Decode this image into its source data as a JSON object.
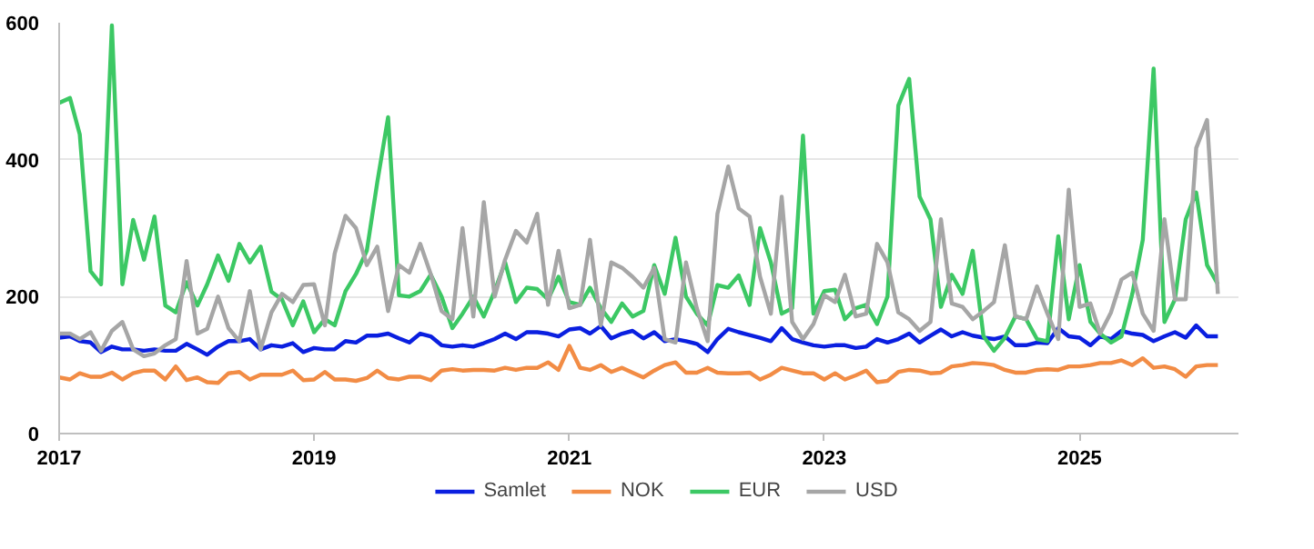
{
  "chart_data": {
    "type": "line",
    "x": [
      "2017-01",
      "2017-02",
      "2017-03",
      "2017-04",
      "2017-05",
      "2017-06",
      "2017-07",
      "2017-08",
      "2017-09",
      "2017-10",
      "2017-11",
      "2017-12",
      "2018-01",
      "2018-02",
      "2018-03",
      "2018-04",
      "2018-05",
      "2018-06",
      "2018-07",
      "2018-08",
      "2018-09",
      "2018-10",
      "2018-11",
      "2018-12",
      "2019-01",
      "2019-02",
      "2019-03",
      "2019-04",
      "2019-05",
      "2019-06",
      "2019-07",
      "2019-08",
      "2019-09",
      "2019-10",
      "2019-11",
      "2019-12",
      "2020-01",
      "2020-02",
      "2020-03",
      "2020-04",
      "2020-05",
      "2020-06",
      "2020-07",
      "2020-08",
      "2020-09",
      "2020-10",
      "2020-11",
      "2020-12",
      "2021-01",
      "2021-02",
      "2021-03",
      "2021-04",
      "2021-05",
      "2021-06",
      "2021-07",
      "2021-08",
      "2021-09",
      "2021-10",
      "2021-11",
      "2021-12",
      "2022-01",
      "2022-02",
      "2022-03",
      "2022-04",
      "2022-05",
      "2022-06",
      "2022-07",
      "2022-08",
      "2022-09",
      "2022-10",
      "2022-11",
      "2022-12",
      "2023-01",
      "2023-02",
      "2023-03",
      "2023-04",
      "2023-05",
      "2023-06",
      "2023-07",
      "2023-08",
      "2023-09",
      "2023-10",
      "2023-11",
      "2023-12",
      "2024-01",
      "2024-02",
      "2024-03",
      "2024-04",
      "2024-05",
      "2024-06",
      "2024-07",
      "2024-08",
      "2024-09",
      "2024-10",
      "2024-11",
      "2024-12",
      "2025-01",
      "2025-02",
      "2025-03",
      "2025-04",
      "2025-05",
      "2025-06",
      "2025-07",
      "2025-08",
      "2025-09",
      "2025-10",
      "2025-11",
      "2025-12",
      "2026-01",
      "2026-02"
    ],
    "xlim": [
      "2017-01",
      "2026-04"
    ],
    "xticks": [
      "2017",
      "2019",
      "2021",
      "2023",
      "2025"
    ],
    "ylim": [
      0,
      600
    ],
    "yticks": [
      0,
      200,
      400,
      600
    ],
    "grid": "y",
    "legend": "bottom",
    "marker": "none",
    "line_style": "solid",
    "series": [
      {
        "name": "Samlet",
        "color": "#0a1fe0",
        "values": [
          140,
          142,
          135,
          133,
          119,
          127,
          123,
          123,
          121,
          123,
          121,
          121,
          131,
          123,
          115,
          127,
          135,
          135,
          138,
          123,
          129,
          127,
          132,
          119,
          125,
          123,
          123,
          135,
          133,
          143,
          143,
          146,
          139,
          133,
          146,
          142,
          129,
          127,
          129,
          127,
          132,
          138,
          146,
          138,
          148,
          148,
          146,
          142,
          152,
          154,
          146,
          157,
          139,
          146,
          150,
          139,
          148,
          135,
          138,
          135,
          131,
          119,
          138,
          153,
          148,
          144,
          140,
          135,
          154,
          138,
          133,
          129,
          127,
          129,
          129,
          125,
          127,
          138,
          133,
          138,
          146,
          133,
          143,
          152,
          142,
          148,
          143,
          140,
          138,
          142,
          129,
          129,
          133,
          132,
          154,
          142,
          140,
          129,
          142,
          138,
          150,
          146,
          144,
          135,
          142,
          148,
          140,
          158,
          142,
          142
        ]
      },
      {
        "name": "NOK",
        "color": "#f28c45",
        "values": [
          82,
          79,
          88,
          83,
          83,
          89,
          79,
          88,
          92,
          92,
          79,
          98,
          78,
          82,
          75,
          74,
          88,
          90,
          79,
          86,
          86,
          86,
          92,
          78,
          79,
          90,
          79,
          79,
          77,
          81,
          92,
          81,
          79,
          83,
          83,
          78,
          92,
          94,
          92,
          93,
          93,
          92,
          96,
          93,
          96,
          96,
          104,
          93,
          128,
          96,
          93,
          100,
          90,
          96,
          89,
          82,
          92,
          100,
          104,
          89,
          89,
          96,
          89,
          88,
          88,
          89,
          79,
          86,
          96,
          92,
          88,
          88,
          79,
          88,
          79,
          85,
          92,
          75,
          77,
          90,
          93,
          92,
          88,
          89,
          98,
          100,
          103,
          102,
          100,
          93,
          89,
          89,
          93,
          94,
          93,
          98,
          98,
          100,
          103,
          103,
          107,
          100,
          110,
          96,
          98,
          94,
          83,
          98,
          100,
          100
        ]
      },
      {
        "name": "EUR",
        "color": "#3cc864",
        "values": [
          483,
          490,
          437,
          237,
          218,
          596,
          218,
          312,
          254,
          317,
          187,
          177,
          221,
          187,
          218,
          260,
          223,
          277,
          250,
          273,
          207,
          196,
          158,
          193,
          148,
          167,
          158,
          208,
          233,
          267,
          367,
          462,
          202,
          200,
          208,
          232,
          200,
          154,
          175,
          200,
          171,
          208,
          250,
          192,
          213,
          211,
          196,
          229,
          192,
          188,
          213,
          183,
          163,
          190,
          171,
          179,
          246,
          204,
          286,
          200,
          175,
          158,
          217,
          213,
          231,
          188,
          300,
          250,
          175,
          183,
          435,
          175,
          208,
          210,
          167,
          183,
          188,
          160,
          200,
          479,
          518,
          346,
          313,
          185,
          232,
          204,
          267,
          142,
          121,
          140,
          171,
          167,
          138,
          135,
          288,
          167,
          246,
          163,
          146,
          133,
          142,
          204,
          283,
          533,
          163,
          196,
          313,
          352,
          246,
          218
        ]
      },
      {
        "name": "USD",
        "color": "#a6a6a6",
        "values": [
          146,
          146,
          138,
          148,
          121,
          150,
          163,
          123,
          113,
          117,
          129,
          138,
          252,
          146,
          153,
          200,
          154,
          135,
          208,
          123,
          177,
          204,
          192,
          217,
          218,
          158,
          263,
          318,
          300,
          246,
          273,
          179,
          246,
          235,
          277,
          233,
          179,
          167,
          300,
          171,
          338,
          200,
          254,
          296,
          279,
          321,
          188,
          267,
          183,
          188,
          283,
          158,
          250,
          242,
          229,
          213,
          242,
          138,
          133,
          250,
          183,
          135,
          321,
          390,
          329,
          317,
          229,
          175,
          346,
          163,
          138,
          160,
          202,
          192,
          232,
          171,
          175,
          277,
          250,
          177,
          167,
          150,
          163,
          313,
          190,
          185,
          167,
          179,
          192,
          275,
          171,
          167,
          215,
          175,
          138,
          356,
          185,
          190,
          146,
          177,
          225,
          235,
          175,
          150,
          313,
          196,
          196,
          417,
          458,
          204
        ]
      }
    ]
  }
}
